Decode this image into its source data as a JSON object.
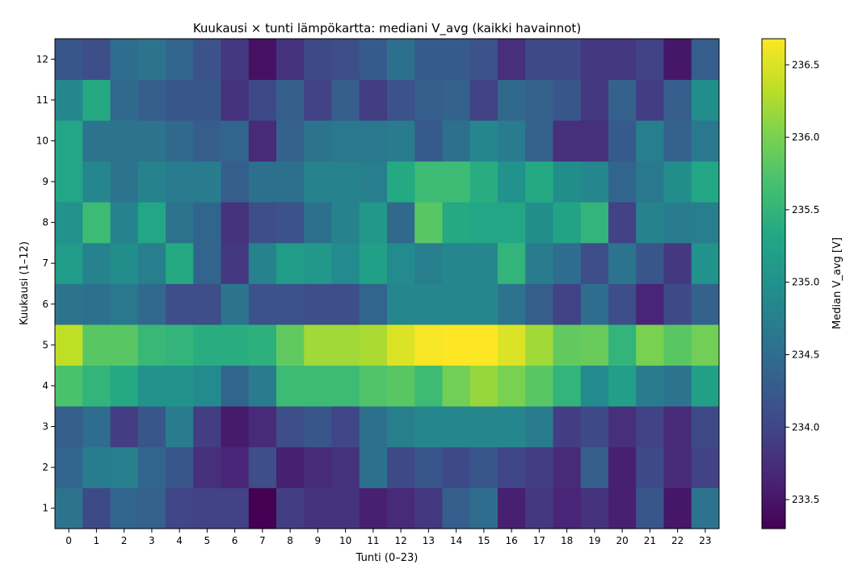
{
  "chart_data": {
    "type": "heatmap",
    "title": "Kuukausi × tunti lämpökartta: mediani V_avg (kaikki havainnot)",
    "xlabel": "Tunti (0–23)",
    "ylabel": "Kuukausi (1–12)",
    "colorbar_label": "Median V_avg [V]",
    "colormap": "viridis",
    "x_categories": [
      "0",
      "1",
      "2",
      "3",
      "4",
      "5",
      "6",
      "7",
      "8",
      "9",
      "10",
      "11",
      "12",
      "13",
      "14",
      "15",
      "16",
      "17",
      "18",
      "19",
      "20",
      "21",
      "22",
      "23"
    ],
    "y_categories": [
      "1",
      "2",
      "3",
      "4",
      "5",
      "6",
      "7",
      "8",
      "9",
      "10",
      "11",
      "12"
    ],
    "color_range": [
      233.3,
      236.68
    ],
    "colorbar_ticks": [
      "233.5",
      "234.0",
      "234.5",
      "235.0",
      "235.5",
      "236.0",
      "236.5"
    ],
    "values": [
      [
        234.6,
        234.05,
        234.4,
        234.35,
        234.0,
        233.95,
        233.95,
        233.3,
        233.9,
        233.8,
        233.8,
        233.6,
        233.7,
        233.85,
        234.3,
        234.5,
        233.6,
        233.85,
        233.65,
        233.8,
        233.6,
        234.2,
        233.5,
        234.6
      ],
      [
        234.4,
        234.7,
        234.75,
        234.4,
        234.2,
        233.75,
        233.65,
        234.1,
        233.6,
        233.7,
        233.8,
        234.55,
        234.05,
        234.2,
        234.05,
        234.2,
        234.0,
        233.9,
        233.7,
        234.3,
        233.6,
        234.05,
        233.7,
        233.95
      ],
      [
        234.3,
        234.5,
        233.9,
        234.2,
        234.7,
        233.9,
        233.55,
        233.7,
        234.1,
        234.2,
        234.0,
        234.55,
        234.75,
        234.85,
        234.85,
        234.85,
        234.85,
        234.7,
        233.9,
        234.05,
        233.75,
        233.95,
        233.7,
        234.05
      ],
      [
        235.7,
        235.5,
        235.35,
        235.0,
        235.0,
        234.9,
        234.4,
        234.7,
        235.6,
        235.6,
        235.6,
        235.75,
        235.8,
        235.6,
        235.95,
        236.15,
        236.0,
        235.8,
        235.5,
        234.9,
        235.2,
        234.7,
        234.6,
        235.2
      ],
      [
        236.35,
        235.8,
        235.8,
        235.55,
        235.5,
        235.4,
        235.4,
        235.45,
        235.85,
        236.2,
        236.2,
        236.25,
        236.5,
        236.65,
        236.7,
        236.7,
        236.5,
        236.2,
        235.85,
        235.9,
        235.5,
        236.0,
        235.8,
        235.95
      ],
      [
        234.6,
        234.55,
        234.65,
        234.45,
        234.1,
        234.1,
        234.6,
        234.15,
        234.15,
        234.1,
        234.1,
        234.4,
        234.85,
        234.85,
        234.85,
        234.85,
        234.6,
        234.3,
        233.95,
        234.5,
        234.1,
        233.65,
        234.05,
        234.35
      ],
      [
        235.15,
        234.8,
        234.95,
        234.75,
        235.35,
        234.4,
        233.85,
        234.8,
        235.15,
        235.1,
        234.9,
        235.2,
        234.9,
        234.75,
        234.85,
        234.85,
        235.5,
        234.7,
        234.5,
        234.1,
        234.6,
        234.2,
        233.85,
        235.0
      ],
      [
        235.0,
        235.6,
        234.8,
        235.3,
        234.6,
        234.4,
        233.8,
        234.1,
        234.15,
        234.55,
        234.8,
        235.1,
        234.45,
        235.8,
        235.35,
        235.3,
        235.3,
        234.95,
        235.25,
        235.5,
        233.95,
        234.8,
        234.7,
        234.75
      ],
      [
        235.3,
        234.85,
        234.6,
        234.8,
        234.7,
        234.7,
        234.3,
        234.55,
        234.55,
        234.8,
        234.8,
        234.75,
        235.35,
        235.6,
        235.6,
        235.4,
        235.0,
        235.35,
        234.95,
        234.85,
        234.4,
        234.65,
        234.95,
        235.3
      ],
      [
        235.3,
        234.6,
        234.6,
        234.6,
        234.45,
        234.3,
        234.4,
        233.7,
        234.35,
        234.6,
        234.65,
        234.65,
        234.7,
        234.25,
        234.55,
        234.85,
        234.7,
        234.35,
        233.75,
        233.75,
        234.25,
        234.75,
        234.35,
        234.65
      ],
      [
        234.85,
        235.35,
        234.45,
        234.3,
        234.2,
        234.2,
        233.8,
        234.05,
        234.3,
        233.95,
        234.3,
        233.9,
        234.15,
        234.3,
        234.35,
        233.95,
        234.45,
        234.35,
        234.2,
        233.85,
        234.35,
        233.9,
        234.3,
        234.95
      ],
      [
        234.2,
        234.1,
        234.5,
        234.6,
        234.4,
        234.15,
        233.85,
        233.45,
        233.8,
        234.05,
        234.1,
        234.25,
        234.55,
        234.25,
        234.25,
        234.15,
        233.75,
        234.05,
        234.05,
        233.85,
        233.85,
        233.95,
        233.5,
        234.3
      ]
    ]
  }
}
